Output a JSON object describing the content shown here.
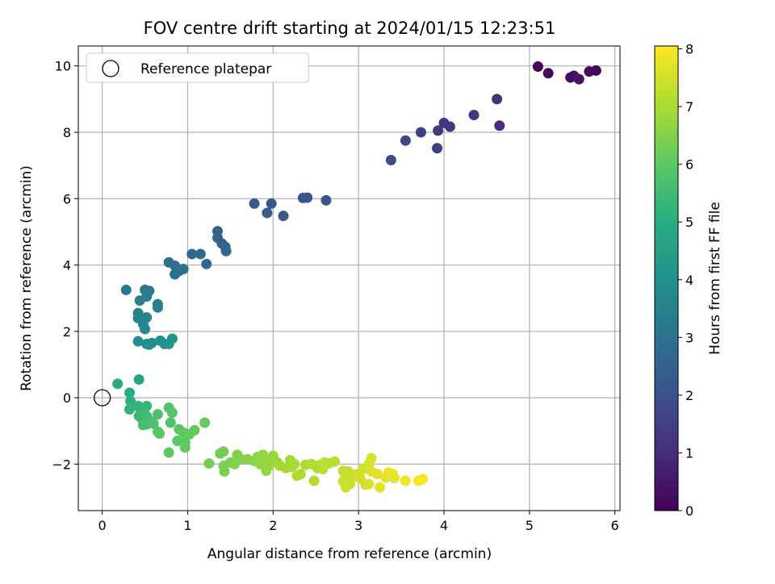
{
  "chart_data": {
    "type": "scatter",
    "title": "FOV centre drift starting at 2024/01/15 12:23:51",
    "xlabel": "Angular distance from reference (arcmin)",
    "ylabel": "Rotation from reference (arcmin)",
    "colorbar_label": "Hours from first FF file",
    "xlim": [
      -0.28,
      6.06
    ],
    "ylim": [
      -3.4,
      10.6
    ],
    "clim": [
      0,
      8.05
    ],
    "colormap": "viridis",
    "grid": true,
    "legend_location": "upper-left",
    "x_ticks": [
      0,
      1,
      2,
      3,
      4,
      5,
      6
    ],
    "y_ticks": [
      -2,
      0,
      2,
      4,
      6,
      8,
      10
    ],
    "colorbar_ticks": [
      0,
      1,
      2,
      3,
      4,
      5,
      6,
      7,
      8
    ],
    "reference": {
      "name": "Reference platepar",
      "x": 0,
      "y": 0
    },
    "points": [
      {
        "x": 5.1,
        "y": 9.98,
        "t": 0.1
      },
      {
        "x": 5.22,
        "y": 9.78,
        "t": 0.2
      },
      {
        "x": 5.48,
        "y": 9.65,
        "t": 0.3
      },
      {
        "x": 5.52,
        "y": 9.7,
        "t": 0.3
      },
      {
        "x": 5.58,
        "y": 9.6,
        "t": 0.4
      },
      {
        "x": 5.7,
        "y": 9.83,
        "t": 0.2
      },
      {
        "x": 5.78,
        "y": 9.86,
        "t": 0.1
      },
      {
        "x": 4.62,
        "y": 9.0,
        "t": 1.0
      },
      {
        "x": 4.65,
        "y": 8.2,
        "t": 1.0
      },
      {
        "x": 4.35,
        "y": 8.52,
        "t": 1.2
      },
      {
        "x": 4.0,
        "y": 8.28,
        "t": 1.3
      },
      {
        "x": 4.07,
        "y": 8.17,
        "t": 1.3
      },
      {
        "x": 3.93,
        "y": 8.05,
        "t": 1.4
      },
      {
        "x": 3.92,
        "y": 7.52,
        "t": 1.5
      },
      {
        "x": 3.73,
        "y": 8.0,
        "t": 1.5
      },
      {
        "x": 3.55,
        "y": 7.75,
        "t": 1.7
      },
      {
        "x": 3.38,
        "y": 7.16,
        "t": 1.9
      },
      {
        "x": 2.62,
        "y": 5.95,
        "t": 2.0
      },
      {
        "x": 2.4,
        "y": 6.03,
        "t": 2.1
      },
      {
        "x": 2.35,
        "y": 6.02,
        "t": 2.1
      },
      {
        "x": 2.12,
        "y": 5.48,
        "t": 2.2
      },
      {
        "x": 1.98,
        "y": 5.85,
        "t": 2.2
      },
      {
        "x": 1.93,
        "y": 5.57,
        "t": 2.3
      },
      {
        "x": 1.78,
        "y": 5.85,
        "t": 2.3
      },
      {
        "x": 1.35,
        "y": 5.02,
        "t": 2.5
      },
      {
        "x": 1.35,
        "y": 4.82,
        "t": 2.5
      },
      {
        "x": 1.4,
        "y": 4.65,
        "t": 2.5
      },
      {
        "x": 1.44,
        "y": 4.55,
        "t": 2.6
      },
      {
        "x": 1.45,
        "y": 4.42,
        "t": 2.6
      },
      {
        "x": 1.05,
        "y": 4.33,
        "t": 2.7
      },
      {
        "x": 1.15,
        "y": 4.33,
        "t": 2.7
      },
      {
        "x": 1.22,
        "y": 4.03,
        "t": 2.8
      },
      {
        "x": 0.78,
        "y": 4.08,
        "t": 2.9
      },
      {
        "x": 0.85,
        "y": 3.98,
        "t": 2.9
      },
      {
        "x": 0.9,
        "y": 3.82,
        "t": 2.9
      },
      {
        "x": 0.95,
        "y": 3.88,
        "t": 3.0
      },
      {
        "x": 0.85,
        "y": 3.72,
        "t": 3.0
      },
      {
        "x": 0.28,
        "y": 3.25,
        "t": 3.2
      },
      {
        "x": 0.5,
        "y": 3.25,
        "t": 3.2
      },
      {
        "x": 0.55,
        "y": 3.22,
        "t": 3.3
      },
      {
        "x": 0.52,
        "y": 3.05,
        "t": 3.3
      },
      {
        "x": 0.44,
        "y": 2.93,
        "t": 3.4
      },
      {
        "x": 0.65,
        "y": 2.82,
        "t": 3.4
      },
      {
        "x": 0.65,
        "y": 2.72,
        "t": 3.5
      },
      {
        "x": 0.42,
        "y": 2.55,
        "t": 3.5
      },
      {
        "x": 0.42,
        "y": 2.4,
        "t": 3.6
      },
      {
        "x": 0.52,
        "y": 2.42,
        "t": 3.6
      },
      {
        "x": 0.48,
        "y": 2.22,
        "t": 3.7
      },
      {
        "x": 0.5,
        "y": 2.07,
        "t": 3.7
      },
      {
        "x": 0.42,
        "y": 1.7,
        "t": 3.9
      },
      {
        "x": 0.52,
        "y": 1.62,
        "t": 3.9
      },
      {
        "x": 0.55,
        "y": 1.6,
        "t": 4.0
      },
      {
        "x": 0.58,
        "y": 1.65,
        "t": 4.0
      },
      {
        "x": 0.68,
        "y": 1.72,
        "t": 4.1
      },
      {
        "x": 0.73,
        "y": 1.62,
        "t": 4.1
      },
      {
        "x": 0.78,
        "y": 1.62,
        "t": 4.2
      },
      {
        "x": 0.82,
        "y": 1.78,
        "t": 4.2
      },
      {
        "x": 0.18,
        "y": 0.42,
        "t": 4.9
      },
      {
        "x": 0.43,
        "y": 0.55,
        "t": 4.8
      },
      {
        "x": 0.32,
        "y": 0.15,
        "t": 5.0
      },
      {
        "x": 0.33,
        "y": -0.1,
        "t": 5.1
      },
      {
        "x": 0.32,
        "y": -0.35,
        "t": 5.2
      },
      {
        "x": 0.42,
        "y": -0.25,
        "t": 5.2
      },
      {
        "x": 0.45,
        "y": -0.35,
        "t": 5.3
      },
      {
        "x": 0.52,
        "y": -0.25,
        "t": 5.3
      },
      {
        "x": 0.43,
        "y": -0.55,
        "t": 5.4
      },
      {
        "x": 0.47,
        "y": -0.65,
        "t": 5.4
      },
      {
        "x": 0.52,
        "y": -0.55,
        "t": 5.5
      },
      {
        "x": 0.55,
        "y": -0.7,
        "t": 5.5
      },
      {
        "x": 0.48,
        "y": -0.82,
        "t": 5.6
      },
      {
        "x": 0.52,
        "y": -0.8,
        "t": 5.6
      },
      {
        "x": 0.58,
        "y": -0.72,
        "t": 5.6
      },
      {
        "x": 0.65,
        "y": -0.5,
        "t": 5.7
      },
      {
        "x": 0.6,
        "y": -0.78,
        "t": 5.7
      },
      {
        "x": 0.78,
        "y": -0.3,
        "t": 5.8
      },
      {
        "x": 0.82,
        "y": -0.45,
        "t": 5.8
      },
      {
        "x": 0.8,
        "y": -0.75,
        "t": 5.8
      },
      {
        "x": 0.65,
        "y": -1.02,
        "t": 5.9
      },
      {
        "x": 0.67,
        "y": -1.08,
        "t": 5.9
      },
      {
        "x": 0.9,
        "y": -0.95,
        "t": 5.9
      },
      {
        "x": 0.95,
        "y": -1.05,
        "t": 6.0
      },
      {
        "x": 0.88,
        "y": -1.3,
        "t": 6.0
      },
      {
        "x": 0.78,
        "y": -1.65,
        "t": 6.0
      },
      {
        "x": 0.97,
        "y": -1.35,
        "t": 6.0
      },
      {
        "x": 0.97,
        "y": -1.5,
        "t": 6.1
      },
      {
        "x": 1.02,
        "y": -1.1,
        "t": 6.1
      },
      {
        "x": 1.08,
        "y": -0.98,
        "t": 6.1
      },
      {
        "x": 1.2,
        "y": -0.75,
        "t": 6.1
      },
      {
        "x": 1.25,
        "y": -1.98,
        "t": 6.3
      },
      {
        "x": 1.38,
        "y": -1.68,
        "t": 6.3
      },
      {
        "x": 1.42,
        "y": -1.62,
        "t": 6.3
      },
      {
        "x": 1.42,
        "y": -2.05,
        "t": 6.4
      },
      {
        "x": 1.43,
        "y": -2.22,
        "t": 6.4
      },
      {
        "x": 1.5,
        "y": -1.95,
        "t": 6.4
      },
      {
        "x": 1.58,
        "y": -1.72,
        "t": 6.5
      },
      {
        "x": 1.55,
        "y": -2.0,
        "t": 6.5
      },
      {
        "x": 1.62,
        "y": -1.85,
        "t": 6.5
      },
      {
        "x": 1.7,
        "y": -1.85,
        "t": 6.6
      },
      {
        "x": 1.78,
        "y": -1.9,
        "t": 6.6
      },
      {
        "x": 1.82,
        "y": -1.78,
        "t": 6.6
      },
      {
        "x": 1.85,
        "y": -2.0,
        "t": 6.7
      },
      {
        "x": 1.88,
        "y": -1.72,
        "t": 6.7
      },
      {
        "x": 1.9,
        "y": -1.95,
        "t": 6.7
      },
      {
        "x": 1.92,
        "y": -2.2,
        "t": 6.7
      },
      {
        "x": 1.95,
        "y": -2.05,
        "t": 6.8
      },
      {
        "x": 1.95,
        "y": -1.85,
        "t": 6.8
      },
      {
        "x": 2.0,
        "y": -1.75,
        "t": 6.8
      },
      {
        "x": 2.05,
        "y": -1.95,
        "t": 6.8
      },
      {
        "x": 2.08,
        "y": -2.05,
        "t": 6.9
      },
      {
        "x": 2.15,
        "y": -2.12,
        "t": 6.9
      },
      {
        "x": 2.2,
        "y": -1.88,
        "t": 6.9
      },
      {
        "x": 2.22,
        "y": -2.08,
        "t": 7.0
      },
      {
        "x": 2.25,
        "y": -2.0,
        "t": 7.0
      },
      {
        "x": 2.28,
        "y": -2.35,
        "t": 7.0
      },
      {
        "x": 2.32,
        "y": -2.3,
        "t": 7.0
      },
      {
        "x": 2.38,
        "y": -2.02,
        "t": 7.0
      },
      {
        "x": 2.45,
        "y": -2.0,
        "t": 7.1
      },
      {
        "x": 2.48,
        "y": -2.5,
        "t": 7.1
      },
      {
        "x": 2.52,
        "y": -2.12,
        "t": 7.1
      },
      {
        "x": 2.55,
        "y": -2.02,
        "t": 7.1
      },
      {
        "x": 2.58,
        "y": -2.15,
        "t": 7.2
      },
      {
        "x": 2.6,
        "y": -1.95,
        "t": 7.2
      },
      {
        "x": 2.65,
        "y": -1.98,
        "t": 7.2
      },
      {
        "x": 2.72,
        "y": -1.92,
        "t": 7.2
      },
      {
        "x": 2.82,
        "y": -2.2,
        "t": 7.3
      },
      {
        "x": 2.85,
        "y": -2.35,
        "t": 7.3
      },
      {
        "x": 2.88,
        "y": -2.22,
        "t": 7.3
      },
      {
        "x": 2.82,
        "y": -2.52,
        "t": 7.4
      },
      {
        "x": 2.85,
        "y": -2.7,
        "t": 7.4
      },
      {
        "x": 2.9,
        "y": -2.6,
        "t": 7.4
      },
      {
        "x": 2.92,
        "y": -2.4,
        "t": 7.4
      },
      {
        "x": 2.98,
        "y": -2.3,
        "t": 7.5
      },
      {
        "x": 3.02,
        "y": -2.42,
        "t": 7.5
      },
      {
        "x": 3.05,
        "y": -2.15,
        "t": 7.5
      },
      {
        "x": 3.08,
        "y": -2.62,
        "t": 7.5
      },
      {
        "x": 3.12,
        "y": -2.6,
        "t": 7.6
      },
      {
        "x": 3.12,
        "y": -2.0,
        "t": 7.6
      },
      {
        "x": 3.15,
        "y": -1.82,
        "t": 7.6
      },
      {
        "x": 3.15,
        "y": -2.22,
        "t": 7.6
      },
      {
        "x": 3.22,
        "y": -2.3,
        "t": 7.7
      },
      {
        "x": 3.25,
        "y": -2.7,
        "t": 7.7
      },
      {
        "x": 3.32,
        "y": -2.4,
        "t": 7.7
      },
      {
        "x": 3.35,
        "y": -2.25,
        "t": 7.8
      },
      {
        "x": 3.4,
        "y": -2.3,
        "t": 7.8
      },
      {
        "x": 3.42,
        "y": -2.42,
        "t": 7.8
      },
      {
        "x": 3.55,
        "y": -2.5,
        "t": 7.9
      },
      {
        "x": 3.7,
        "y": -2.5,
        "t": 8.0
      },
      {
        "x": 3.75,
        "y": -2.45,
        "t": 8.0
      }
    ]
  }
}
